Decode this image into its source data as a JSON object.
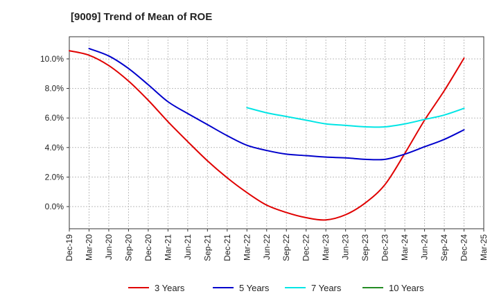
{
  "chart_data": {
    "type": "line",
    "title": "[9009]  Trend of Mean of ROE",
    "xlabel": "",
    "ylabel": "",
    "x": [
      "Dec-19",
      "Mar-20",
      "Jun-20",
      "Sep-20",
      "Dec-20",
      "Mar-21",
      "Jun-21",
      "Sep-21",
      "Dec-21",
      "Mar-22",
      "Jun-22",
      "Sep-22",
      "Dec-22",
      "Mar-23",
      "Jun-23",
      "Sep-23",
      "Dec-23",
      "Mar-24",
      "Jun-24",
      "Sep-24",
      "Dec-24",
      "Mar-25"
    ],
    "ylim": [
      -1.5,
      11.5
    ],
    "yticks": [
      0,
      2,
      4,
      6,
      8,
      10
    ],
    "ytick_labels": [
      "0.0%",
      "2.0%",
      "4.0%",
      "6.0%",
      "8.0%",
      "10.0%"
    ],
    "grid": true,
    "legend_position": "bottom",
    "series": [
      {
        "name": "3 Years",
        "color": "#e00000",
        "values": [
          10.55,
          10.25,
          9.55,
          8.5,
          7.2,
          5.75,
          4.4,
          3.1,
          1.95,
          0.95,
          0.1,
          -0.4,
          -0.75,
          -0.9,
          -0.55,
          0.25,
          1.5,
          3.6,
          5.85,
          7.85,
          10.05,
          null
        ]
      },
      {
        "name": "5 Years",
        "color": "#0000cc",
        "values": [
          null,
          10.7,
          10.2,
          9.35,
          8.25,
          7.1,
          6.3,
          5.55,
          4.8,
          4.15,
          3.8,
          3.55,
          3.45,
          3.35,
          3.3,
          3.2,
          3.2,
          3.55,
          4.05,
          4.55,
          5.2,
          null
        ]
      },
      {
        "name": "7 Years",
        "color": "#00e5e5",
        "values": [
          null,
          null,
          null,
          null,
          null,
          null,
          null,
          null,
          null,
          6.7,
          6.35,
          6.1,
          5.85,
          5.6,
          5.5,
          5.4,
          5.4,
          5.6,
          5.9,
          6.2,
          6.65,
          null
        ]
      },
      {
        "name": "10 Years",
        "color": "#228b22",
        "values": [
          null,
          null,
          null,
          null,
          null,
          null,
          null,
          null,
          null,
          null,
          null,
          null,
          null,
          null,
          null,
          null,
          null,
          null,
          null,
          null,
          null,
          null
        ]
      }
    ]
  }
}
